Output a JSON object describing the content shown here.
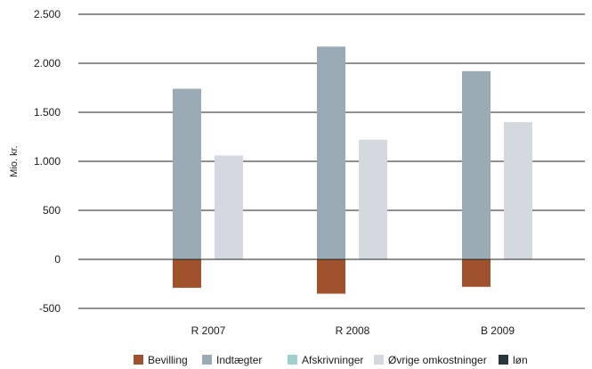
{
  "chart_data": {
    "type": "bar",
    "ylabel": "Mio. kr.",
    "ylim": [
      -500,
      2500
    ],
    "yticks": [
      -500,
      0,
      500,
      1000,
      1500,
      2000,
      2500
    ],
    "ytick_labels": [
      "-500",
      "0",
      "500",
      "1.000",
      "1.500",
      "2.000",
      "2.500"
    ],
    "categories": [
      "R 2007",
      "R 2008",
      "B 2009"
    ],
    "grid": true,
    "legend_position": "bottom",
    "series": [
      {
        "name": "Bevilling",
        "color": "#a0522d",
        "values": [
          -290,
          -350,
          -280
        ]
      },
      {
        "name": "Indtægter",
        "color": "#9aabb6",
        "values": [
          1740,
          2170,
          1920
        ]
      },
      {
        "name": "Afskrivninger",
        "color": "#9fcfcf",
        "values": [
          0,
          0,
          0
        ]
      },
      {
        "name": "Øvrige omkostninger",
        "color": "#d3d9de",
        "values": [
          1060,
          1220,
          1400
        ]
      },
      {
        "name": "løn",
        "color": "#28363c",
        "values": [
          0,
          0,
          0
        ]
      }
    ]
  }
}
